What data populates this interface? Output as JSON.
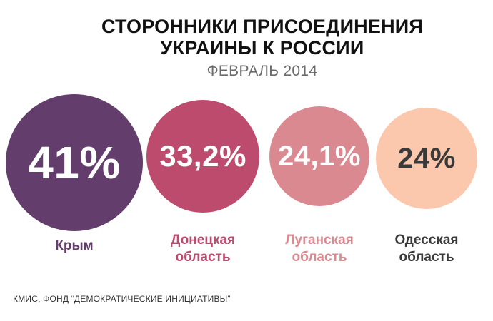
{
  "header": {
    "title_line1": "СТОРОННИКИ ПРИСОЕДИНЕНИЯ",
    "title_line2": "УКРАИНЫ К РОССИИ",
    "subtitle": "ФЕВРАЛЬ 2014"
  },
  "chart_data": {
    "type": "bubble",
    "unit": "%",
    "categories": [
      "Крым",
      "Донецкая область",
      "Луганская область",
      "Одесская область"
    ],
    "values": [
      41,
      33.2,
      24.1,
      24
    ],
    "value_labels": [
      "41%",
      "33,2%",
      "24,1%",
      "24%"
    ],
    "label_lines": [
      [
        "Крым"
      ],
      [
        "Донецкая",
        "область"
      ],
      [
        "Луганская",
        "область"
      ],
      [
        "Одесская",
        "область"
      ]
    ],
    "colors": {
      "circle": [
        "#633e6c",
        "#bd4b6d",
        "#db8990",
        "#fcc8ad"
      ],
      "value_text": [
        "#ffffff",
        "#ffffff",
        "#ffffff",
        "#3a3a3a"
      ],
      "label": [
        "#633e6c",
        "#bd4b6d",
        "#db8990",
        "#3a3a3a"
      ]
    }
  },
  "footer": {
    "source": "КМИС, ФОНД “ДЕМОКРАТИЧЕСКИЕ ИНИЦИАТИВЫ”"
  }
}
